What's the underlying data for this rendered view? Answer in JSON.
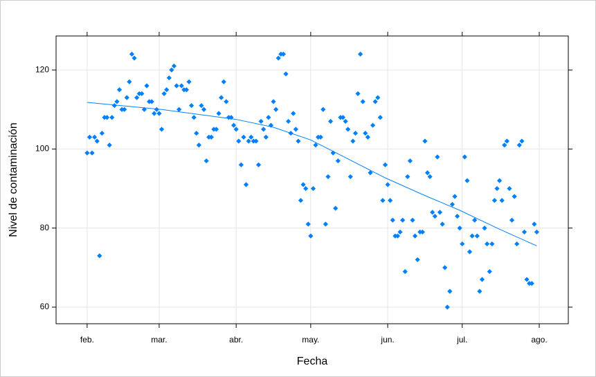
{
  "chart_data": {
    "type": "scatter",
    "xlabel": "Fecha",
    "ylabel": "Nivel de contaminación",
    "color": "#0080ff",
    "x": [
      0,
      1,
      2,
      3,
      4,
      5,
      6,
      7,
      8,
      9,
      10,
      11,
      12,
      13,
      14,
      15,
      16,
      17,
      18,
      19,
      20,
      21,
      22,
      23,
      24,
      25,
      26,
      27,
      28,
      29,
      30,
      31,
      32,
      33,
      34,
      35,
      36,
      37,
      38,
      39,
      40,
      41,
      42,
      43,
      44,
      45,
      46,
      47,
      48,
      49,
      50,
      51,
      52,
      53,
      54,
      55,
      56,
      57,
      58,
      59,
      60,
      61,
      62,
      63,
      64,
      65,
      66,
      67,
      68,
      69,
      70,
      71,
      72,
      73,
      74,
      75,
      76,
      77,
      78,
      79,
      80,
      81,
      82,
      83,
      84,
      85,
      86,
      87,
      88,
      89,
      90,
      91,
      92,
      93,
      94,
      95,
      96,
      97,
      98,
      99,
      100,
      101,
      102,
      103,
      104,
      105,
      106,
      107,
      108,
      109,
      110,
      111,
      112,
      113,
      114,
      115,
      116,
      117,
      118,
      119,
      120,
      121,
      122,
      123,
      124,
      125,
      126,
      127,
      128,
      129,
      130,
      131,
      132,
      133,
      134,
      135,
      136,
      137,
      138,
      139,
      140,
      141,
      142,
      143,
      144,
      145,
      146,
      147,
      148,
      149,
      150,
      151,
      152,
      153,
      154,
      155,
      156,
      157,
      158,
      159,
      160,
      161,
      162,
      163,
      164,
      165,
      166,
      167,
      168,
      169,
      170,
      171,
      172,
      173,
      174,
      175,
      176,
      177,
      178,
      179,
      180,
      181
    ],
    "values": [
      99,
      103,
      99,
      103,
      102,
      73,
      104,
      108,
      108,
      101,
      108,
      111,
      112,
      115,
      110,
      110,
      113,
      117,
      124,
      123,
      113,
      114,
      114,
      110,
      116,
      112,
      112,
      109,
      110,
      109,
      105,
      114,
      115,
      118,
      120,
      121,
      116,
      110,
      116,
      115,
      115,
      117,
      111,
      108,
      104,
      101,
      111,
      110,
      97,
      103,
      103,
      105,
      105,
      109,
      113,
      117,
      112,
      108,
      108,
      106,
      105,
      102,
      96,
      103,
      91,
      102,
      103,
      102,
      102,
      96,
      107,
      105,
      103,
      108,
      106,
      112,
      110,
      123,
      124,
      124,
      119,
      107,
      104,
      109,
      105,
      102,
      87,
      91,
      90,
      81,
      78,
      90,
      101,
      103,
      103,
      110,
      81,
      93,
      107,
      99,
      85,
      97,
      108,
      108,
      107,
      105,
      93,
      102,
      104,
      114,
      124,
      112,
      104,
      103,
      94,
      106,
      112,
      113,
      108,
      87,
      96,
      91,
      87,
      82,
      78,
      78,
      79,
      82,
      69,
      93,
      97,
      82,
      78,
      72,
      79,
      79,
      102,
      94,
      93,
      84,
      83,
      98,
      84,
      81,
      70,
      60,
      64,
      86,
      88,
      83,
      80,
      76,
      98,
      92,
      74,
      78,
      82,
      78,
      64,
      67,
      80,
      76,
      69,
      76,
      87,
      90,
      92,
      87,
      101,
      102,
      90,
      82,
      88,
      76,
      101,
      102,
      79,
      67,
      66,
      66,
      81,
      79
    ],
    "smooth": {
      "color": "#0080ff",
      "x": [
        0,
        30,
        60,
        75,
        90,
        105,
        120,
        135,
        150,
        165,
        181
      ],
      "values": [
        111.8,
        110.0,
        107.5,
        105.5,
        102.3,
        97.5,
        92.7,
        88.5,
        84.5,
        80.0,
        75.5
      ]
    },
    "xlim": [
      -12.5,
      193.7
    ],
    "xticks": [
      {
        "value": 0,
        "label": "feb."
      },
      {
        "value": 29,
        "label": "mar."
      },
      {
        "value": 60,
        "label": "abr."
      },
      {
        "value": 90,
        "label": "may."
      },
      {
        "value": 121,
        "label": "jun."
      },
      {
        "value": 151,
        "label": "jul."
      },
      {
        "value": 182,
        "label": "ago."
      }
    ],
    "ylim": [
      55.8,
      128.6
    ],
    "yticks": [
      60,
      80,
      100,
      120
    ],
    "grid": true
  }
}
